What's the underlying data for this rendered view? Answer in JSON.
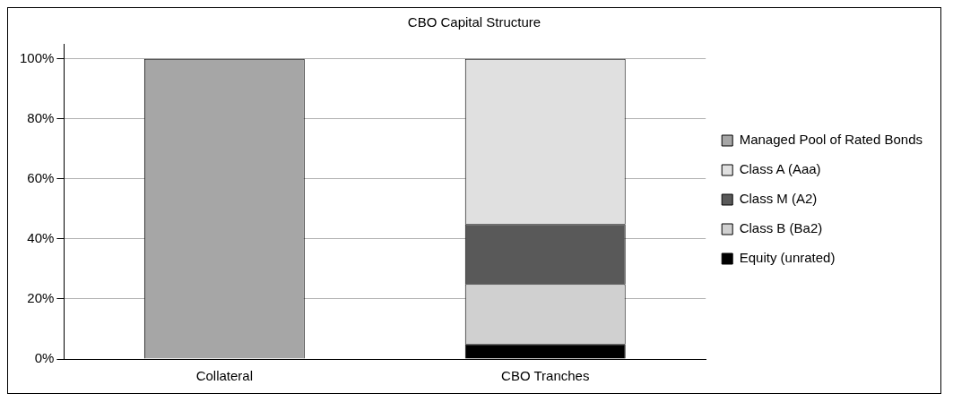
{
  "chart_data": {
    "type": "bar",
    "title": "CBO Capital Structure",
    "stacked": true,
    "categories": [
      "Collateral",
      "CBO Tranches"
    ],
    "series": [
      {
        "name": "Equity (unrated)",
        "color": "#000000",
        "values": [
          null,
          5
        ]
      },
      {
        "name": "Class B (Ba2)",
        "color": "#d0d0d0",
        "values": [
          null,
          20
        ]
      },
      {
        "name": "Class M (A2)",
        "color": "#595959",
        "values": [
          null,
          20
        ]
      },
      {
        "name": "Class A (Aaa)",
        "color": "#e0e0e0",
        "values": [
          null,
          55
        ]
      },
      {
        "name": "Managed Pool of Rated Bonds",
        "color": "#a6a6a6",
        "values": [
          100,
          null
        ]
      }
    ],
    "ylim": [
      0,
      105
    ],
    "yticks": [
      {
        "value": 0,
        "label": "0%"
      },
      {
        "value": 20,
        "label": "20%"
      },
      {
        "value": 40,
        "label": "40%"
      },
      {
        "value": 60,
        "label": "60%"
      },
      {
        "value": 80,
        "label": "80%"
      },
      {
        "value": 100,
        "label": "100%"
      }
    ],
    "grid": "y",
    "legend": "right"
  }
}
